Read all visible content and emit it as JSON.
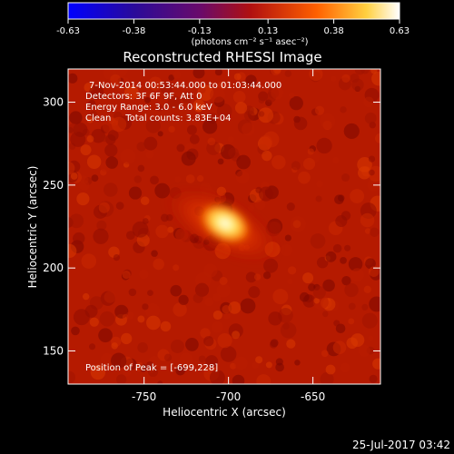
{
  "colorbar": {
    "ticks": [
      "-0.63",
      "-0.38",
      "-0.13",
      "0.13",
      "0.38",
      "0.63"
    ],
    "unit_label": "(photons cm⁻² s⁻¹ asec⁻²)"
  },
  "title": "Reconstructed RHESSI Image",
  "info": {
    "line1": "7-Nov-2014 00:53:44.000 to 01:03:44.000",
    "line2": "Detectors: 3F 6F 9F, Att 0",
    "line3": "Energy Range: 3.0 - 6.0 keV",
    "line4": "Clean     Total counts: 3.83E+04"
  },
  "peak_label": "Position of Peak = [-699,228]",
  "footer_timestamp": "25-Jul-2017 03:42",
  "chart_data": {
    "type": "heatmap",
    "title": "Reconstructed RHESSI Image",
    "xlabel": "Heliocentric X (arcsec)",
    "ylabel": "Heliocentric Y (arcsec)",
    "xlim": [
      -795,
      -610
    ],
    "ylim": [
      130,
      320
    ],
    "x_ticks": [
      -750,
      -700,
      -650
    ],
    "y_ticks": [
      150,
      200,
      250,
      300
    ],
    "x_tick_labels": [
      "-750",
      "-700",
      "-650"
    ],
    "y_tick_labels": [
      "150",
      "200",
      "250",
      "300"
    ],
    "colorscale": "red-temperature",
    "color_range": [
      -0.63,
      0.63
    ],
    "peak": {
      "x": -699,
      "y": 228
    }
  }
}
